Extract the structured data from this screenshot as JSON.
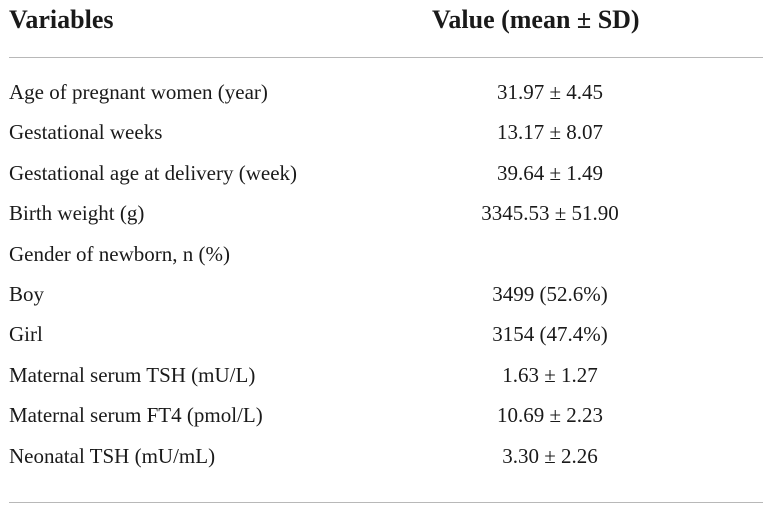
{
  "header": {
    "variables_label": "Variables",
    "value_label": "Value (mean ± SD)"
  },
  "rows": [
    {
      "label": "Age of pregnant women (year)",
      "value": "31.97 ± 4.45"
    },
    {
      "label": "Gestational weeks",
      "value": "13.17 ± 8.07"
    },
    {
      "label": "Gestational age at delivery (week)",
      "value": "39.64 ± 1.49"
    },
    {
      "label": "Birth weight (g)",
      "value": "3345.53 ± 51.90"
    },
    {
      "label": "Gender of newborn, n (%)",
      "value": ""
    },
    {
      "label": "Boy",
      "value": "3499 (52.6%)"
    },
    {
      "label": "Girl",
      "value": "3154 (47.4%)"
    },
    {
      "label": "Maternal serum TSH (mU/L)",
      "value": "1.63 ± 1.27"
    },
    {
      "label": "Maternal serum FT4 (pmol/L)",
      "value": "10.69 ± 2.23"
    },
    {
      "label": "Neonatal TSH (mU/mL)",
      "value": "3.30 ± 2.26"
    }
  ]
}
